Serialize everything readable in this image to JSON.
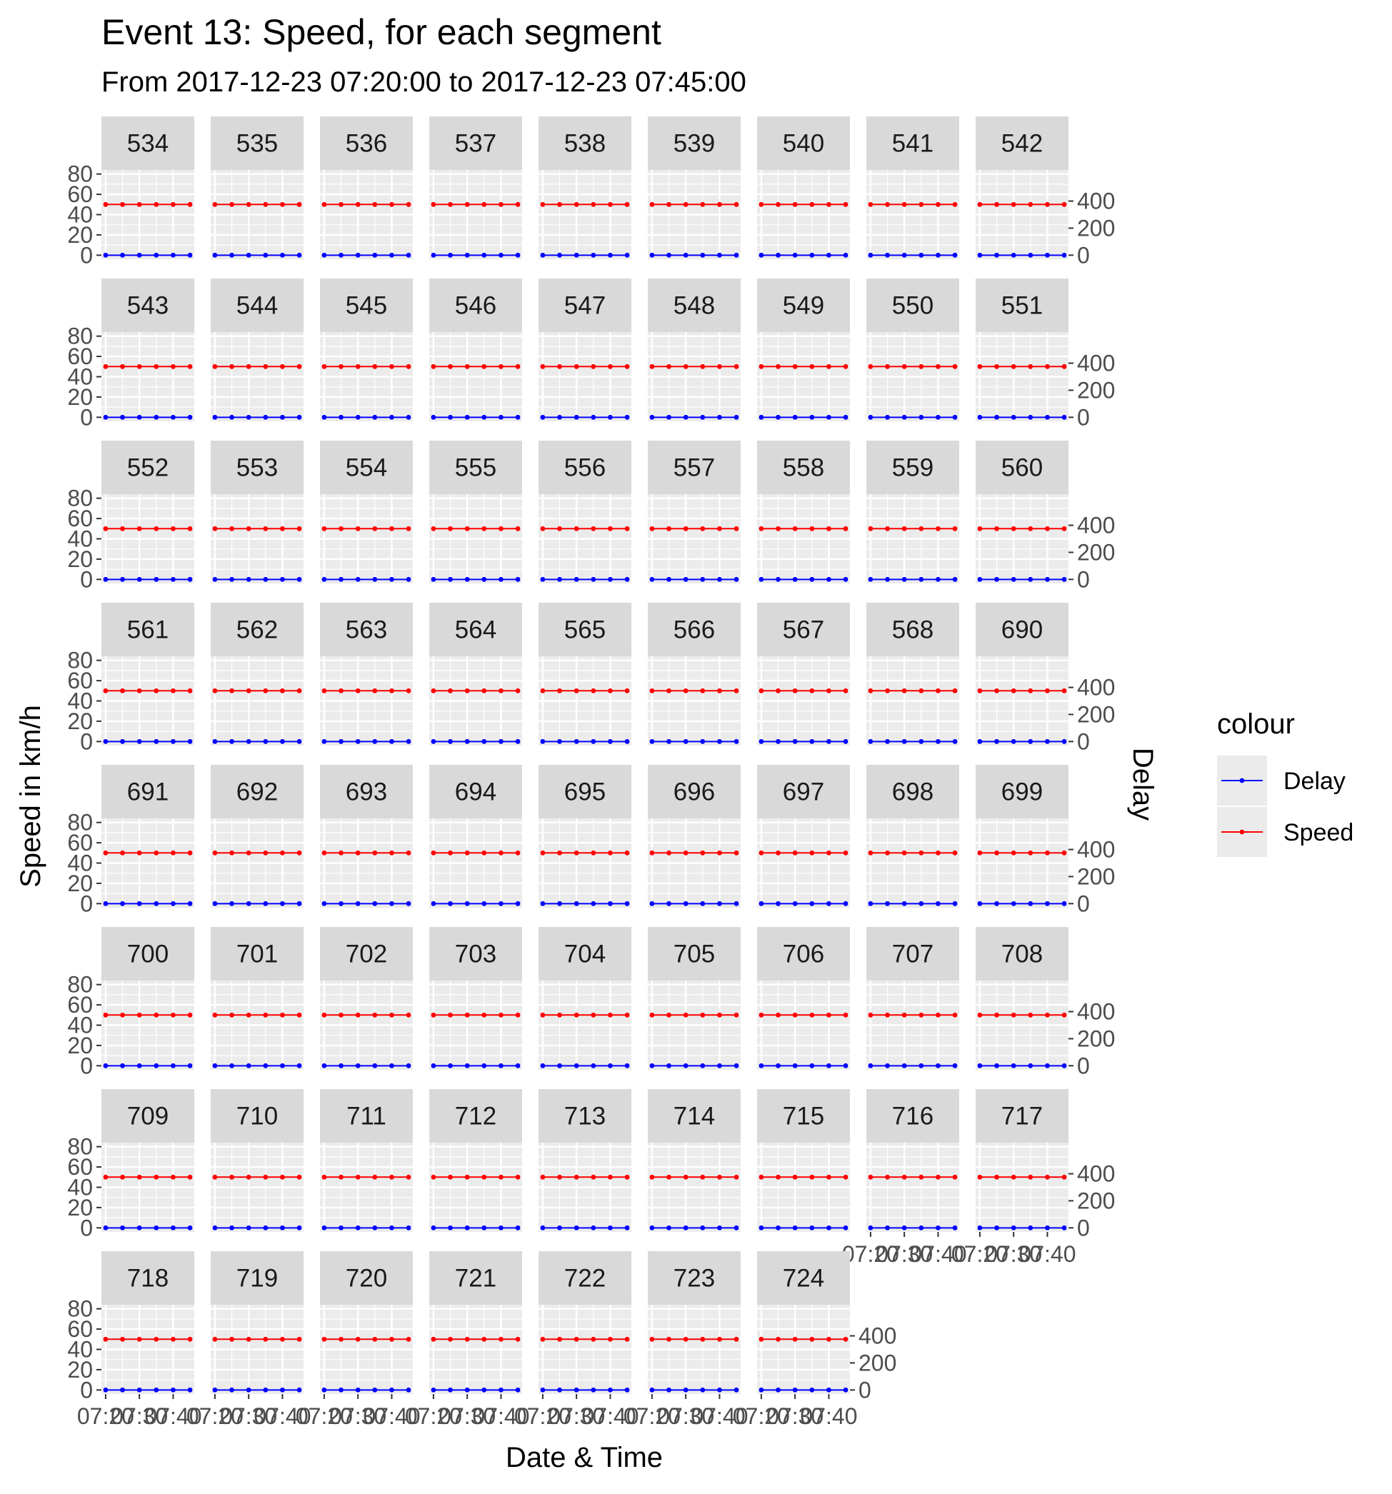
{
  "chart_data": {
    "type": "line",
    "title": "Event 13: Speed, for each segment",
    "subtitle": "From 2017-12-23 07:20:00 to 2017-12-23 07:45:00",
    "xlabel": "Date & Time",
    "ylabel": "Speed in km/h",
    "y2label": "Delay",
    "facet_labels": [
      "534",
      "535",
      "536",
      "537",
      "538",
      "539",
      "540",
      "541",
      "542",
      "543",
      "544",
      "545",
      "546",
      "547",
      "548",
      "549",
      "550",
      "551",
      "552",
      "553",
      "554",
      "555",
      "556",
      "557",
      "558",
      "559",
      "560",
      "561",
      "562",
      "563",
      "564",
      "565",
      "566",
      "567",
      "568",
      "690",
      "691",
      "692",
      "693",
      "694",
      "695",
      "696",
      "697",
      "698",
      "699",
      "700",
      "701",
      "702",
      "703",
      "704",
      "705",
      "706",
      "707",
      "708",
      "709",
      "710",
      "711",
      "712",
      "713",
      "714",
      "715",
      "716",
      "717",
      "718",
      "719",
      "720",
      "721",
      "722",
      "723",
      "724"
    ],
    "x": [
      "07:20",
      "07:25",
      "07:30",
      "07:35",
      "07:40",
      "07:45"
    ],
    "x_tick_labels": [
      "07:20",
      "07:30",
      "07:40"
    ],
    "y_ticks": [
      0,
      20,
      40,
      60,
      80
    ],
    "ylim": [
      0,
      80
    ],
    "y2_ticks": [
      0,
      200,
      400
    ],
    "y2lim": [
      0,
      600
    ],
    "series": [
      {
        "name": "Delay",
        "color": "#0000ff",
        "axis": "secondary",
        "values": [
          0,
          0,
          0,
          0,
          0,
          0
        ]
      },
      {
        "name": "Speed",
        "color": "#ff0000",
        "axis": "primary",
        "values": [
          50,
          50,
          50,
          50,
          50,
          50
        ]
      }
    ],
    "legend": {
      "title": "colour",
      "position": "right",
      "entries": [
        "Delay",
        "Speed"
      ]
    },
    "grid": true
  }
}
